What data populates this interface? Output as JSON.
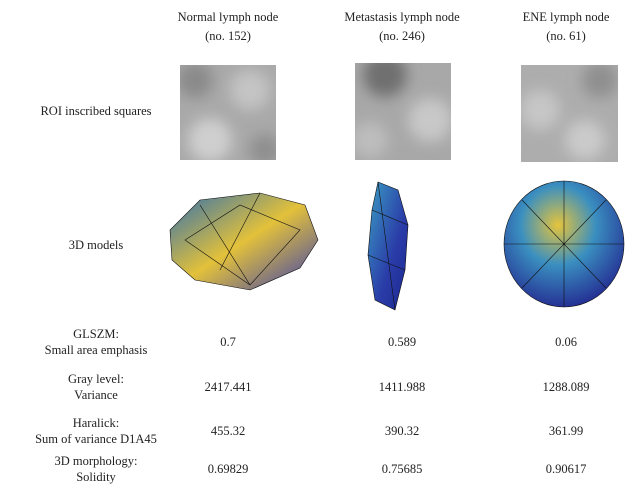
{
  "columns": [
    {
      "title": "Normal lymph node",
      "subtitle": "(no. 152)"
    },
    {
      "title": "Metastasis lymph node",
      "subtitle": "(no. 246)"
    },
    {
      "title": "ENE lymph node",
      "subtitle": "(no. 61)"
    }
  ],
  "image_rows": [
    "ROI  inscribed squares",
    "3D models"
  ],
  "table": {
    "rows": [
      {
        "label": [
          "GLSZM:",
          "Small area emphasis"
        ],
        "values": [
          "0.7",
          "0.589",
          "0.06"
        ]
      },
      {
        "label": [
          "Gray  level:",
          "Variance"
        ],
        "values": [
          "2417.441",
          "1411.988",
          "1288.089"
        ]
      },
      {
        "label": [
          "Haralick:",
          "Sum of variance  D1A45"
        ],
        "values": [
          "455.32",
          "390.32",
          "361.99"
        ]
      },
      {
        "label": [
          "3D morphology:",
          "Solidity"
        ],
        "values": [
          "0.69829",
          "0.75685",
          "0.90617"
        ]
      }
    ]
  }
}
